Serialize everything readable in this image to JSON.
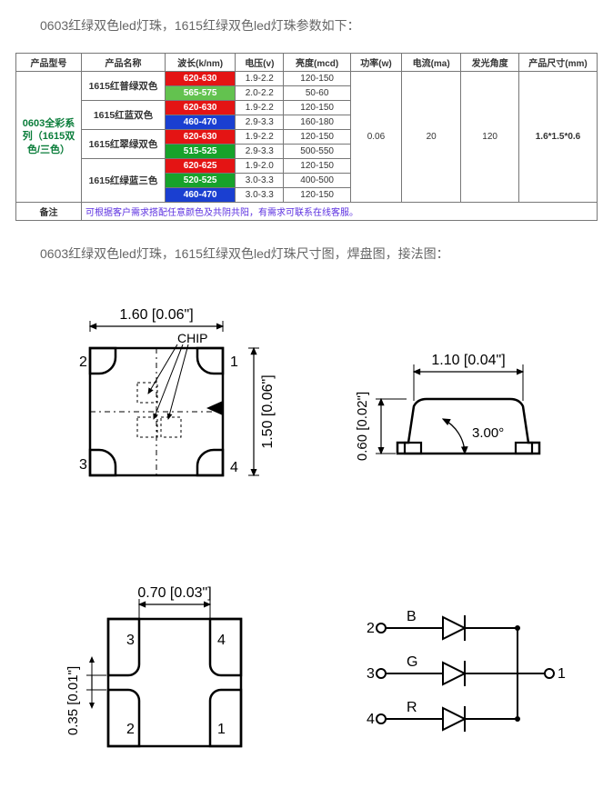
{
  "intro": "0603红绿双色led灯珠，1615红绿双色led灯珠参数如下：",
  "caption2": "0603红绿双色led灯珠，1615红绿双色led灯珠尺寸图，焊盘图，接法图：",
  "headers": {
    "model": "产品型号",
    "name": "产品名称",
    "wavelength": "波长(k/nm)",
    "voltage": "电压(v)",
    "brightness": "亮度(mcd)",
    "power": "功率(w)",
    "current": "电流(ma)",
    "angle": "发光角度",
    "size": "产品尺寸(mm)"
  },
  "series": "0603全彩系列（1615双色/三色）",
  "shared": {
    "power": "0.06",
    "current": "20",
    "angle": "120",
    "size": "1.6*1.5*0.6"
  },
  "groups": [
    {
      "name": "1615红普绿双色",
      "rows": [
        {
          "wl": "620-630",
          "bg": "#e41414",
          "v": "1.9-2.2",
          "mcd": "120-150"
        },
        {
          "wl": "565-575",
          "bg": "#63c24f",
          "v": "2.0-2.2",
          "mcd": "50-60"
        }
      ]
    },
    {
      "name": "1615红蓝双色",
      "rows": [
        {
          "wl": "620-630",
          "bg": "#e41414",
          "v": "1.9-2.2",
          "mcd": "120-150"
        },
        {
          "wl": "460-470",
          "bg": "#1a3fd1",
          "v": "2.9-3.3",
          "mcd": "160-180"
        }
      ]
    },
    {
      "name": "1615红翠绿双色",
      "rows": [
        {
          "wl": "620-630",
          "bg": "#e41414",
          "v": "1.9-2.2",
          "mcd": "120-150"
        },
        {
          "wl": "515-525",
          "bg": "#17a22b",
          "v": "2.9-3.3",
          "mcd": "500-550"
        }
      ]
    },
    {
      "name": "1615红绿蓝三色",
      "rows": [
        {
          "wl": "620-625",
          "bg": "#e41414",
          "v": "1.9-2.0",
          "mcd": "120-150"
        },
        {
          "wl": "520-525",
          "bg": "#17a22b",
          "v": "3.0-3.3",
          "mcd": "400-500"
        },
        {
          "wl": "460-470",
          "bg": "#1a3fd1",
          "v": "3.0-3.3",
          "mcd": "120-150"
        }
      ]
    }
  ],
  "note": {
    "label": "备注",
    "text": "可根据客户需求搭配任意颜色及共阴共阳，有需求可联系在线客服。"
  },
  "drawings": {
    "top": {
      "w_label": "1.60 [0.06\"]",
      "h_label": "1.50 [0.06\"]",
      "chip_label": "CHIP",
      "pins": {
        "p1": "1",
        "p2": "2",
        "p3": "3",
        "p4": "4"
      }
    },
    "side": {
      "w_label": "1.10 [0.04\"]",
      "h_label": "0.60 [0.02\"]",
      "angle_label": "3.00°"
    },
    "footprint": {
      "w_label": "0.70 [0.03\"]",
      "gap_label": "0.35 [0.01\"]",
      "pins": {
        "p1": "1",
        "p2": "2",
        "p3": "3",
        "p4": "4"
      }
    },
    "circuit": {
      "n1": "1",
      "n2": "2",
      "n3": "3",
      "n4": "4",
      "b": "B",
      "g": "G",
      "r": "R"
    }
  },
  "colors": {
    "text": "#333333",
    "muted": "#666666",
    "border": "#777777",
    "series": "#0a7d3a",
    "note": "#5b2fe0",
    "stroke": "#000000"
  }
}
